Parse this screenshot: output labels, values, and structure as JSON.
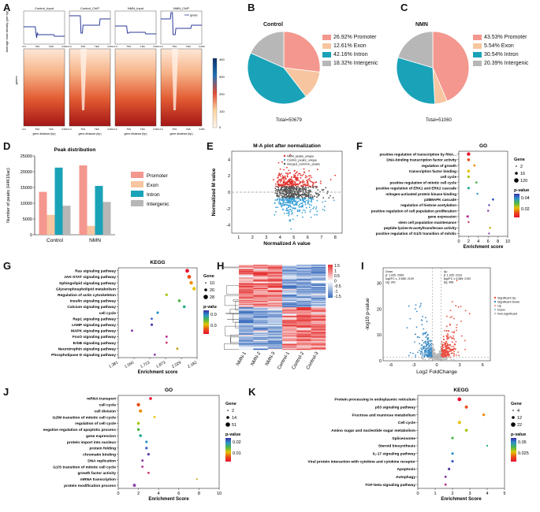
{
  "letters": {
    "A": "A",
    "B": "B",
    "C": "C",
    "D": "D",
    "E": "E",
    "F": "F",
    "G": "G",
    "H": "H",
    "I": "I",
    "J": "J",
    "K": "K"
  },
  "panelA": {
    "profile_titles": [
      "Control_Input",
      "Control_ChIP",
      "NMN_Input",
      "NMN_ChIP"
    ],
    "legend": "genes",
    "ylabel_top": "Average read density (per bp)",
    "ylabel_heat": "genes",
    "xticks": [
      "-3.0",
      "TSS",
      "TES",
      "3.0Kb"
    ],
    "xlabel": "gene distance (bp)",
    "colorbar": [
      "400",
      "300",
      "200",
      "100",
      "0"
    ]
  },
  "panelB": {
    "title": "Control",
    "total": "Total=50679",
    "legend": [
      {
        "pct": "26.92%",
        "label": "Promoter",
        "value": 26.92,
        "color": "#f4978e"
      },
      {
        "pct": "12.61%",
        "label": "Exon",
        "value": 12.61,
        "color": "#f7c59f"
      },
      {
        "pct": "42.16%",
        "label": "Intron",
        "value": 42.16,
        "color": "#1aa3b8"
      },
      {
        "pct": "18.32%",
        "label": "Intergenic",
        "value": 18.32,
        "color": "#b7b7b7"
      }
    ]
  },
  "panelC": {
    "title": "NMN",
    "total": "Total=51060",
    "legend": [
      {
        "pct": "43.53%",
        "label": "Promoter",
        "value": 43.53,
        "color": "#f4978e"
      },
      {
        "pct": "5.54%",
        "label": "Exon",
        "value": 5.54,
        "color": "#f7c59f"
      },
      {
        "pct": "30.54%",
        "label": "Intron",
        "value": 30.54,
        "color": "#1aa3b8"
      },
      {
        "pct": "20.39%",
        "label": "Intergenic",
        "value": 20.39,
        "color": "#b7b7b7"
      }
    ]
  },
  "chart_data": [
    {
      "type": "bar",
      "title": "Peak distribution",
      "ylabel": "Number of peaks (H4K16ac)",
      "categories": [
        "Control",
        "NMN"
      ],
      "ylim": [
        0,
        25000
      ],
      "yticks": [
        "0",
        "5000",
        "10000",
        "15000",
        "20000",
        "25000"
      ],
      "series": [
        {
          "name": "Promoter",
          "values": [
            13600,
            22000
          ],
          "color": "#f4978e"
        },
        {
          "name": "Exon",
          "values": [
            6300,
            2800
          ],
          "color": "#f7c59f"
        },
        {
          "name": "Intron",
          "values": [
            21300,
            15500
          ],
          "color": "#1aa3b8"
        },
        {
          "name": "Intergenic",
          "values": [
            9200,
            10400
          ],
          "color": "#b7b7b7"
        }
      ]
    },
    {
      "type": "scatter",
      "title": "M-A plot after normalization",
      "xlabel": "Normalized A value",
      "ylabel": "Normalized M value",
      "xticks": [
        "1",
        "2",
        "3",
        "4",
        "5",
        "6",
        "7",
        "8"
      ],
      "yticks": [
        "-4",
        "-2",
        "0",
        "2",
        "4"
      ],
      "legend": [
        "NMN_peaks_unique",
        "Control_peaks_unique",
        "merged_common_peaks"
      ]
    },
    {
      "type": "scatter",
      "title": "GO",
      "xlabel": "Enrichment score",
      "xticks": [
        "0",
        "2",
        "4",
        "6",
        "8",
        "10"
      ],
      "terms": [
        "positive regulation of transcription by RNA...",
        "DNA-binding transcription factor activity",
        "regulation of growth",
        "transcription factor binding",
        "cell cycle",
        "positive regulation of mitotic cell cycle",
        "positive regulation of ERK1 and ERK2 cascade",
        "mitogen-activated protein kinase binding",
        "p38MAPK cascade",
        "regulation of histone acetylation",
        "positive regulation of cell population proliferation",
        "gene expression",
        "stem cell population maintenance",
        "peptide-lysine-N-acetyltransferase activity",
        "positive regulation of G1/S transition of mitotic"
      ],
      "x": [
        2.0,
        2.0,
        3.2,
        2.0,
        2.0,
        3.6,
        2.0,
        3.8,
        7.0,
        6.2,
        6.0,
        1.8,
        2.0,
        6.4,
        6.2
      ],
      "legend_gene": [
        "2",
        "16",
        "120"
      ],
      "legend_p": [
        "0.04",
        "0.02"
      ]
    },
    {
      "type": "scatter",
      "title": "KEGG",
      "xlabel": "Enrichment score",
      "xticks": [
        "1.381",
        "1.555",
        "1.713",
        "1.873",
        "2.029",
        "2.182"
      ],
      "terms": [
        "Ras signaling pathway",
        "JAK-STAT signaling pathway",
        "Sphingolipid signaling pathway",
        "Glycerophospholipid metabolism",
        "Regulation of actin cytoskeleton",
        "Insulin signaling pathway",
        "Calcium signaling pathway",
        "cell cycle",
        "Rap1 signaling pathway",
        "cAMP signaling pathway",
        "MAPK signaling pathway",
        "FoxO signaling pathway",
        "ErbB signaling pathway",
        "Neurotrophin signaling pathway",
        "Phospholipase D signaling pathway"
      ],
      "x": [
        2.08,
        2.1,
        2.12,
        2.15,
        1.87,
        2.0,
        2.05,
        1.78,
        1.72,
        1.72,
        1.52,
        1.87,
        1.87,
        1.98,
        1.75
      ],
      "legend_gene": [
        "10",
        "20",
        "28"
      ],
      "legend_p": [
        "0.04",
        "0.02"
      ]
    },
    {
      "type": "heatmap",
      "columns": [
        "NMN-1",
        "NMN-2",
        "NMN-3",
        "Control-1",
        "Control-2",
        "Control-3"
      ],
      "scale": [
        "1.5",
        "1",
        "0.5",
        "0",
        "-0.5",
        "-1",
        "-1.5"
      ]
    },
    {
      "type": "scatter",
      "xlabel": "Log2 FoldChange",
      "ylabel": "-log10 p-value",
      "xticks": [
        "-6",
        "-3",
        "0",
        "3",
        "6"
      ],
      "yticks": [
        "0",
        "10",
        "20",
        "30"
      ],
      "down_text": [
        "Down",
        "β: 1.935 -2069",
        "log2FC ≤ -0.585: 2109",
        "sig: 342"
      ],
      "up_text": [
        "Up",
        "β: 1.935: 2218",
        "log2FC ≥ 0.585: 2192",
        "sig: 466"
      ],
      "legend": [
        "Significant Up",
        "Significant Down",
        "Up",
        "Down",
        "Non-significant"
      ]
    },
    {
      "type": "scatter",
      "title": "GO",
      "xlabel": "Enrichment Score",
      "xticks": [
        "0",
        "2",
        "4",
        "6",
        "8",
        "10"
      ],
      "terms": [
        "mRNA transport",
        "cell cycle",
        "cell division",
        "G2/M transition of mitotic cell cycle",
        "regulation of cell cycle",
        "negative regulation of apoptotic process",
        "gene expression",
        "protein import into nucleus",
        "protein folding",
        "chromatin binding",
        "DNA replication",
        "G1/S transition of mitotic cell cycle",
        "growth factor activity",
        "mRNA transcription",
        "protein modification process"
      ],
      "x": [
        3.2,
        2.0,
        2.2,
        3.6,
        2.0,
        2.0,
        2.2,
        2.8,
        2.8,
        3.0,
        2.4,
        2.4,
        3.0,
        7.8,
        1.6
      ],
      "legend_gene": [
        "2",
        "14",
        "51"
      ],
      "legend_p": [
        "0.02",
        "0.01"
      ]
    },
    {
      "type": "scatter",
      "title": "KEGG",
      "xlabel": "Enrichment Score",
      "xticks": [
        "0",
        "1",
        "2",
        "3",
        "4",
        "5"
      ],
      "terms": [
        "Protein processing in endoplasmic reticulum",
        "p53 signaling pathway",
        "Fructose and mannose metabolism",
        "Cell cycle",
        "Amino sugar and nucleotide sugar metabolism",
        "Spliceosome",
        "Steroid biosynthesis",
        "IL-17 signaling pathway",
        "Viral protein interaction with cytokine and cytokine receptor",
        "Apoptosis",
        "Autophagy",
        "TGF-beta signaling pathway"
      ],
      "x": [
        2.4,
        2.8,
        3.8,
        2.4,
        2.8,
        2.0,
        4.0,
        2.0,
        2.0,
        1.8,
        1.6,
        1.6
      ],
      "legend_gene": [
        "4",
        "12",
        "22"
      ],
      "legend_p": [
        "0.05",
        "0.025"
      ]
    }
  ]
}
